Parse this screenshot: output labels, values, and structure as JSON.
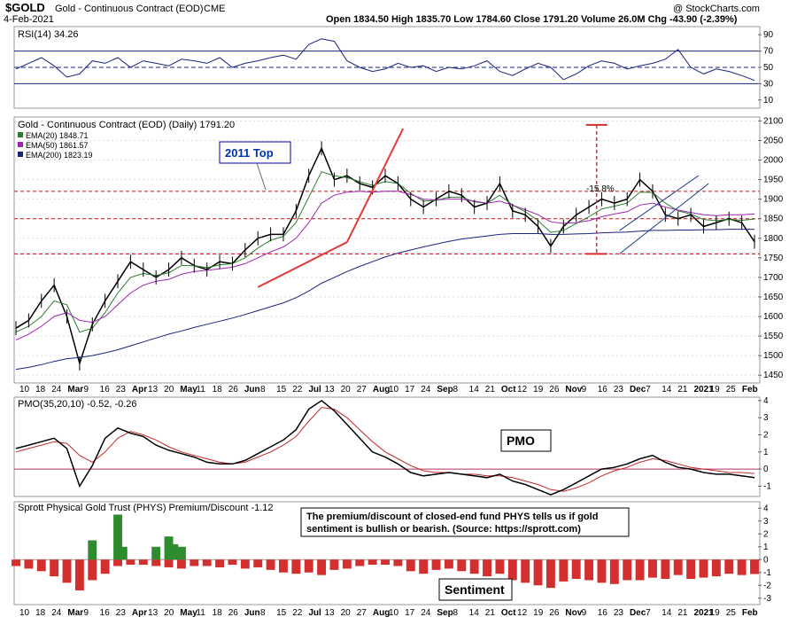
{
  "header": {
    "symbol": "$GOLD",
    "name": "Gold - Continuous Contract (EOD)",
    "exchange": "CME",
    "date": "4-Feb-2021",
    "quote": "Open 1834.50  High 1835.70  Low 1784.60  Close 1791.20  Volume 26.0M  Chg -43.90 (-2.39%)",
    "copyright": "@ StockCharts.com"
  },
  "colors": {
    "price_bar": "#000000",
    "ema20": "#2e7d32",
    "ema50": "#9c27b0",
    "ema200": "#1a237e",
    "support_red": "#d32f2f",
    "trend_red": "#e53935",
    "rsi_fill": "#1a3c8a",
    "phys_pos": "#2e8b2e",
    "phys_neg": "#d32f2f",
    "panel_bg": "#ffffff",
    "callout_border": "#0000aa",
    "callout_text": "#0033aa"
  },
  "chart_data": [
    {
      "type": "line",
      "panel": "rsi",
      "title": "RSI(14) 34.26",
      "ylim": [
        0,
        100
      ],
      "y_ticks": [
        10,
        30,
        50,
        70,
        90
      ],
      "reference_lines": [
        30,
        50,
        70
      ],
      "x": [
        0,
        5,
        10,
        15,
        20,
        25,
        30,
        35,
        40,
        45,
        50,
        55,
        60,
        65,
        70,
        75,
        80,
        85,
        90,
        95,
        100,
        105,
        110,
        115,
        120,
        125,
        130,
        135,
        140,
        145,
        150,
        155,
        160,
        165,
        170,
        175,
        180,
        185,
        190,
        195,
        200,
        205,
        210,
        215,
        220,
        225,
        230,
        235,
        240,
        245,
        250,
        255,
        260,
        265,
        270,
        275,
        280,
        285,
        290
      ],
      "values": [
        48,
        55,
        62,
        52,
        38,
        42,
        58,
        55,
        62,
        50,
        58,
        55,
        52,
        60,
        58,
        55,
        62,
        50,
        55,
        58,
        62,
        65,
        60,
        78,
        85,
        82,
        58,
        50,
        45,
        48,
        55,
        50,
        52,
        45,
        50,
        48,
        52,
        58,
        45,
        40,
        48,
        55,
        50,
        35,
        42,
        52,
        58,
        55,
        48,
        52,
        55,
        60,
        72,
        50,
        42,
        48,
        45,
        40,
        34
      ]
    },
    {
      "type": "line",
      "panel": "price",
      "title": "Gold - Continuous Contract (EOD) (Daily) 1791.20",
      "ylim": [
        1430,
        2110
      ],
      "y_ticks": [
        1450,
        1500,
        1550,
        1600,
        1650,
        1700,
        1750,
        1800,
        1850,
        1900,
        1950,
        2000,
        2050,
        2100
      ],
      "x_tick_labels": [
        "10",
        "18",
        "24",
        "Mar",
        "9",
        "16",
        "23",
        "Apr",
        "13",
        "20",
        "May",
        "11",
        "18",
        "26",
        "Jun",
        "8",
        "15",
        "22",
        "Jul",
        "13",
        "20",
        "27",
        "Aug",
        "10",
        "17",
        "24",
        "Sep",
        "8",
        "14",
        "21",
        "Oct",
        "12",
        "19",
        "26",
        "Nov",
        "9",
        "16",
        "23",
        "Dec",
        "7",
        "14",
        "21",
        "2021",
        "19",
        "25",
        "Feb"
      ],
      "x": [
        0,
        5,
        10,
        15,
        20,
        25,
        30,
        35,
        40,
        45,
        50,
        55,
        60,
        65,
        70,
        75,
        80,
        85,
        90,
        95,
        100,
        105,
        110,
        115,
        120,
        125,
        130,
        135,
        140,
        145,
        150,
        155,
        160,
        165,
        170,
        175,
        180,
        185,
        190,
        195,
        200,
        205,
        210,
        215,
        220,
        225,
        230,
        235,
        240,
        245,
        250,
        255,
        260,
        265,
        270,
        275,
        280,
        285,
        290
      ],
      "series": [
        {
          "name": "Close",
          "values": [
            1570,
            1590,
            1640,
            1680,
            1600,
            1480,
            1580,
            1640,
            1690,
            1740,
            1720,
            1700,
            1720,
            1750,
            1730,
            1720,
            1740,
            1735,
            1770,
            1800,
            1810,
            1810,
            1870,
            1960,
            2030,
            1950,
            1960,
            1940,
            1930,
            1960,
            1940,
            1900,
            1880,
            1900,
            1920,
            1910,
            1880,
            1890,
            1940,
            1870,
            1860,
            1830,
            1780,
            1830,
            1860,
            1880,
            1900,
            1890,
            1900,
            1950,
            1920,
            1860,
            1850,
            1860,
            1830,
            1840,
            1850,
            1840,
            1791
          ]
        },
        {
          "name": "EMA(20) 1848.71",
          "values": [
            1560,
            1575,
            1600,
            1640,
            1630,
            1560,
            1570,
            1610,
            1660,
            1700,
            1710,
            1705,
            1712,
            1730,
            1730,
            1725,
            1732,
            1735,
            1750,
            1775,
            1795,
            1805,
            1840,
            1905,
            1970,
            1960,
            1955,
            1945,
            1935,
            1945,
            1940,
            1915,
            1895,
            1897,
            1905,
            1905,
            1893,
            1890,
            1910,
            1885,
            1868,
            1845,
            1815,
            1820,
            1838,
            1855,
            1875,
            1882,
            1890,
            1918,
            1917,
            1890,
            1870,
            1862,
            1848,
            1845,
            1848,
            1846,
            1849
          ]
        },
        {
          "name": "EMA(50) 1861.57",
          "values": [
            1540,
            1555,
            1575,
            1600,
            1610,
            1590,
            1585,
            1600,
            1630,
            1660,
            1680,
            1690,
            1695,
            1708,
            1715,
            1718,
            1722,
            1726,
            1735,
            1750,
            1765,
            1778,
            1800,
            1840,
            1890,
            1910,
            1918,
            1920,
            1918,
            1920,
            1920,
            1912,
            1900,
            1898,
            1900,
            1900,
            1895,
            1890,
            1895,
            1885,
            1873,
            1860,
            1842,
            1838,
            1840,
            1845,
            1855,
            1862,
            1868,
            1885,
            1890,
            1880,
            1872,
            1866,
            1860,
            1858,
            1860,
            1860,
            1862
          ]
        },
        {
          "name": "EMA(200) 1823.19",
          "values": [
            1465,
            1470,
            1477,
            1485,
            1492,
            1495,
            1500,
            1507,
            1515,
            1525,
            1535,
            1545,
            1555,
            1563,
            1572,
            1580,
            1588,
            1596,
            1605,
            1615,
            1625,
            1635,
            1648,
            1665,
            1685,
            1700,
            1715,
            1728,
            1740,
            1752,
            1762,
            1770,
            1778,
            1785,
            1792,
            1798,
            1802,
            1806,
            1810,
            1812,
            1812,
            1812,
            1810,
            1810,
            1811,
            1812,
            1814,
            1815,
            1816,
            1818,
            1820,
            1820,
            1821,
            1821,
            1822,
            1822,
            1823,
            1823,
            1823
          ]
        }
      ],
      "horizontal_lines": [
        1920,
        1850,
        1760
      ],
      "annotations": [
        "2011 Top",
        "-15.8%"
      ]
    },
    {
      "type": "line",
      "panel": "pmo",
      "title": "PMO(35,20,10) -0.52, -0.26",
      "ylim": [
        -1.6,
        4.2
      ],
      "y_ticks": [
        -1,
        0,
        1,
        2,
        3,
        4
      ],
      "x": [
        0,
        5,
        10,
        15,
        20,
        25,
        30,
        35,
        40,
        45,
        50,
        55,
        60,
        65,
        70,
        75,
        80,
        85,
        90,
        95,
        100,
        105,
        110,
        115,
        120,
        125,
        130,
        135,
        140,
        145,
        150,
        155,
        160,
        165,
        170,
        175,
        180,
        185,
        190,
        195,
        200,
        205,
        210,
        215,
        220,
        225,
        230,
        235,
        240,
        245,
        250,
        255,
        260,
        265,
        270,
        275,
        280,
        285,
        290
      ],
      "series": [
        {
          "name": "PMO",
          "values": [
            1.2,
            1.4,
            1.6,
            1.8,
            1.2,
            -1.0,
            0.2,
            1.8,
            2.4,
            2.1,
            1.9,
            1.4,
            1.1,
            0.9,
            0.7,
            0.4,
            0.3,
            0.3,
            0.5,
            0.9,
            1.3,
            1.7,
            2.3,
            3.5,
            4.0,
            3.4,
            2.6,
            1.8,
            1.0,
            0.7,
            0.3,
            -0.2,
            -0.4,
            -0.3,
            -0.2,
            -0.3,
            -0.4,
            -0.5,
            -0.3,
            -0.7,
            -0.9,
            -1.2,
            -1.5,
            -1.2,
            -0.8,
            -0.4,
            0.0,
            0.1,
            0.3,
            0.6,
            0.8,
            0.4,
            0.1,
            0.0,
            -0.2,
            -0.3,
            -0.3,
            -0.4,
            -0.5
          ]
        },
        {
          "name": "Signal",
          "values": [
            1.0,
            1.2,
            1.4,
            1.6,
            1.5,
            0.8,
            0.4,
            1.0,
            1.8,
            2.2,
            2.0,
            1.7,
            1.3,
            1.0,
            0.8,
            0.6,
            0.4,
            0.3,
            0.4,
            0.7,
            1.0,
            1.4,
            1.9,
            2.8,
            3.6,
            3.5,
            3.0,
            2.3,
            1.6,
            1.0,
            0.6,
            0.2,
            -0.1,
            -0.2,
            -0.2,
            -0.3,
            -0.3,
            -0.4,
            -0.4,
            -0.5,
            -0.7,
            -0.9,
            -1.2,
            -1.3,
            -1.1,
            -0.8,
            -0.4,
            -0.1,
            0.1,
            0.4,
            0.6,
            0.5,
            0.3,
            0.1,
            0.0,
            -0.1,
            -0.2,
            -0.2,
            -0.26
          ]
        }
      ],
      "label": "PMO"
    },
    {
      "type": "bar",
      "panel": "phys",
      "title": "Sprott Physical Gold Trust (PHYS) Premium/Discount -1.12",
      "ylim": [
        -3.5,
        4.5
      ],
      "y_ticks": [
        -3,
        -2,
        -1,
        0,
        1,
        2,
        3,
        4
      ],
      "x": [
        0,
        5,
        10,
        15,
        20,
        25,
        30,
        35,
        40,
        45,
        50,
        55,
        60,
        65,
        70,
        75,
        80,
        85,
        90,
        95,
        100,
        105,
        110,
        115,
        120,
        125,
        130,
        135,
        140,
        145,
        150,
        155,
        160,
        165,
        170,
        175,
        180,
        185,
        190,
        195,
        200,
        205,
        210,
        215,
        220,
        225,
        230,
        235,
        240,
        245,
        250,
        255,
        260,
        265,
        270,
        275,
        280,
        285,
        290
      ],
      "values": [
        -0.5,
        -0.7,
        -0.9,
        -1.3,
        -1.8,
        -2.4,
        -1.6,
        -1.1,
        -0.5,
        -0.4,
        -0.4,
        -0.5,
        -0.6,
        -0.7,
        -0.5,
        -0.5,
        -0.6,
        -0.4,
        -0.7,
        -0.6,
        -0.8,
        -1.0,
        -1.1,
        -1.0,
        -1.2,
        -0.8,
        -0.7,
        -0.5,
        -0.4,
        -0.4,
        -0.5,
        -0.9,
        -1.1,
        -0.8,
        -0.7,
        -0.9,
        -1.1,
        -1.3,
        -1.1,
        -1.6,
        -1.8,
        -2.0,
        -2.2,
        -1.7,
        -1.5,
        -1.6,
        -1.8,
        -1.9,
        -1.6,
        -1.6,
        -1.4,
        -1.5,
        -1.2,
        -1.5,
        -1.4,
        -1.3,
        -1.1,
        -1.2,
        -1.12
      ],
      "positive_spikes": [
        [
          30,
          1.5
        ],
        [
          40,
          3.5
        ],
        [
          42,
          1.0
        ],
        [
          55,
          1.0
        ],
        [
          60,
          1.8
        ],
        [
          62,
          1.2
        ],
        [
          65,
          1.0
        ]
      ],
      "callout": "The premium/discount of closed-end fund PHYS tells us if gold sentiment is bullish or bearish. (Source: https://sprott.com)",
      "label": "Sentiment"
    }
  ]
}
